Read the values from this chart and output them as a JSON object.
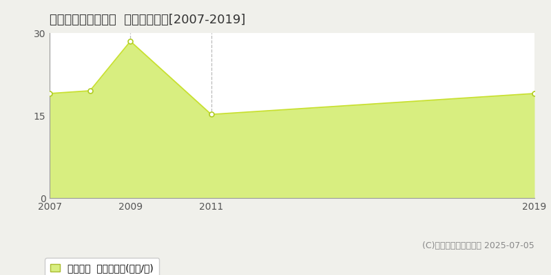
{
  "title": "下関市長府宮の内町  土地価格推移[2007-2019]",
  "years": [
    2007,
    2008,
    2009,
    2011,
    2019
  ],
  "values": [
    19.0,
    19.5,
    28.5,
    15.2,
    19.0
  ],
  "line_color": "#c8e030",
  "fill_color": "#d8ee80",
  "fill_alpha": 1.0,
  "marker_facecolor": "#ffffff",
  "marker_edgecolor": "#b0cc20",
  "marker_size": 5,
  "ylim": [
    0,
    30
  ],
  "yticks": [
    0,
    15,
    30
  ],
  "xticks": [
    2007,
    2009,
    2011,
    2019
  ],
  "vlines": [
    2009,
    2011
  ],
  "hlines": [
    15
  ],
  "grid_color": "#bbbbbb",
  "bg_color": "#f0f0eb",
  "plot_bg_color": "#ffffff",
  "spine_color": "#999999",
  "legend_label": "土地価格  平均坪単価(万円/坪)",
  "copyright": "(C)土地価格ドットコム 2025-07-05",
  "title_fontsize": 13,
  "tick_fontsize": 10,
  "legend_fontsize": 10,
  "copyright_fontsize": 9
}
